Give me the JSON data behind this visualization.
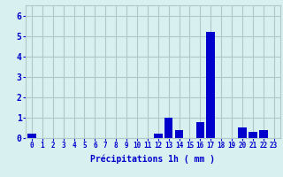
{
  "hours": [
    0,
    1,
    2,
    3,
    4,
    5,
    6,
    7,
    8,
    9,
    10,
    11,
    12,
    13,
    14,
    15,
    16,
    17,
    18,
    19,
    20,
    21,
    22,
    23
  ],
  "values": [
    0.2,
    0.0,
    0.0,
    0.0,
    0.0,
    0.0,
    0.0,
    0.0,
    0.0,
    0.0,
    0.0,
    0.0,
    0.2,
    1.0,
    0.4,
    0.0,
    0.8,
    5.2,
    0.0,
    0.0,
    0.5,
    0.3,
    0.4,
    0.0
  ],
  "bar_color": "#0000cc",
  "bar_edge_color": "#0000aa",
  "background_color": "#d8f0f0",
  "grid_color": "#b0c8c8",
  "xlabel": "Précipitations 1h ( mm )",
  "xlabel_color": "#0000cc",
  "tick_color": "#0000cc",
  "ylim": [
    0,
    6.5
  ],
  "yticks": [
    0,
    1,
    2,
    3,
    4,
    5,
    6
  ]
}
